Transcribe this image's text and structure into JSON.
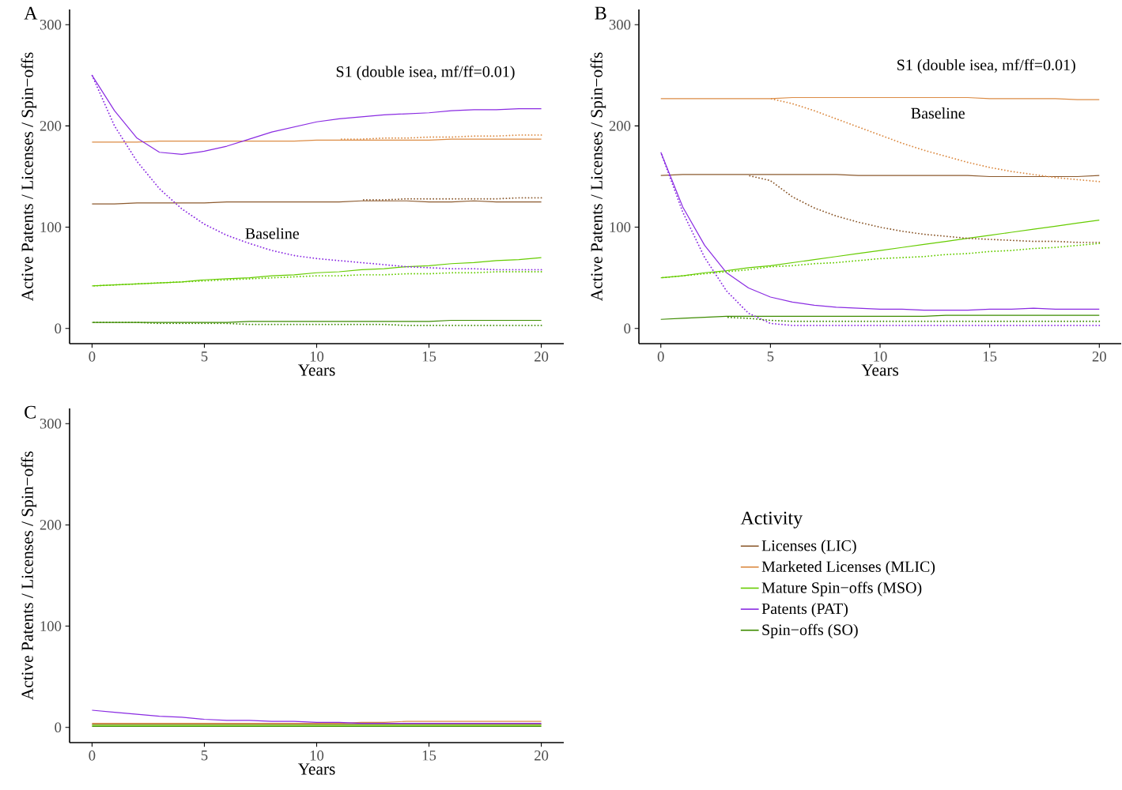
{
  "chart_data": [
    {
      "type": "line",
      "title": "A",
      "xlabel": "Years",
      "ylabel": "Active Patents / Licenses / Spin−offs",
      "xlim": [
        -1,
        21
      ],
      "ylim": [
        -15,
        315
      ],
      "xticks": [
        0,
        5,
        10,
        15,
        20
      ],
      "yticks": [
        0,
        100,
        200,
        300
      ],
      "x": [
        0,
        1,
        2,
        3,
        4,
        5,
        6,
        7,
        8,
        9,
        10,
        11,
        12,
        13,
        14,
        15,
        16,
        17,
        18,
        19,
        20
      ],
      "series": [
        {
          "color": "#8c5a2e",
          "line_style": "solid",
          "values": [
            123,
            123,
            124,
            124,
            124,
            124,
            125,
            125,
            125,
            125,
            125,
            125,
            126,
            126,
            126,
            125,
            125,
            126,
            125,
            125,
            125
          ]
        },
        {
          "color": "#dc8c45",
          "line_style": "solid",
          "values": [
            184,
            184,
            184,
            185,
            185,
            185,
            185,
            185,
            185,
            185,
            186,
            186,
            186,
            186,
            186,
            186,
            187,
            187,
            187,
            187,
            187
          ]
        },
        {
          "color": "#66cc00",
          "line_style": "solid",
          "values": [
            42,
            43,
            44,
            45,
            46,
            48,
            49,
            50,
            52,
            53,
            55,
            56,
            58,
            59,
            61,
            62,
            64,
            65,
            67,
            68,
            70
          ]
        },
        {
          "color": "#8a2be2",
          "line_style": "solid",
          "values": [
            250,
            215,
            188,
            174,
            172,
            175,
            180,
            187,
            194,
            199,
            204,
            207,
            209,
            211,
            212,
            213,
            215,
            216,
            216,
            217,
            217
          ]
        },
        {
          "color": "#3d8b00",
          "line_style": "solid",
          "values": [
            6,
            6,
            6,
            6,
            6,
            6,
            6,
            7,
            7,
            7,
            7,
            7,
            7,
            7,
            7,
            7,
            8,
            8,
            8,
            8,
            8
          ]
        },
        {
          "color": "#8c5a2e",
          "line_style": "dotted",
          "values": [
            null,
            null,
            null,
            null,
            null,
            null,
            null,
            null,
            null,
            null,
            null,
            null,
            127,
            127,
            128,
            128,
            128,
            128,
            128,
            129,
            129
          ]
        },
        {
          "color": "#dc8c45",
          "line_style": "dotted",
          "values": [
            null,
            null,
            null,
            null,
            null,
            null,
            null,
            null,
            null,
            null,
            null,
            187,
            187,
            188,
            188,
            189,
            189,
            190,
            190,
            191,
            191
          ]
        },
        {
          "color": "#66cc00",
          "line_style": "dotted",
          "values": [
            42,
            43,
            44,
            45,
            46,
            47,
            48,
            49,
            50,
            51,
            52,
            52,
            53,
            53,
            54,
            54,
            55,
            55,
            56,
            56,
            56
          ]
        },
        {
          "color": "#8a2be2",
          "line_style": "dotted",
          "values": [
            250,
            200,
            165,
            138,
            118,
            103,
            92,
            84,
            77,
            72,
            69,
            67,
            65,
            63,
            61,
            60,
            59,
            59,
            58,
            58,
            58
          ]
        },
        {
          "color": "#3d8b00",
          "line_style": "dotted",
          "values": [
            6,
            6,
            6,
            5,
            5,
            5,
            5,
            4,
            4,
            4,
            4,
            4,
            4,
            4,
            3,
            3,
            3,
            3,
            3,
            3,
            3
          ]
        }
      ],
      "annotations": [
        "S1 (double isea, mf/ff=0.01)",
        "Baseline"
      ]
    },
    {
      "type": "line",
      "title": "B",
      "xlabel": "Years",
      "ylabel": "Active Patents / Licenses / Spin−offs",
      "xlim": [
        -1,
        21
      ],
      "ylim": [
        -15,
        315
      ],
      "xticks": [
        0,
        5,
        10,
        15,
        20
      ],
      "yticks": [
        0,
        100,
        200,
        300
      ],
      "x": [
        0,
        1,
        2,
        3,
        4,
        5,
        6,
        7,
        8,
        9,
        10,
        11,
        12,
        13,
        14,
        15,
        16,
        17,
        18,
        19,
        20
      ],
      "series": [
        {
          "color": "#8c5a2e",
          "line_style": "solid",
          "values": [
            151,
            152,
            152,
            152,
            152,
            152,
            152,
            152,
            152,
            151,
            151,
            151,
            151,
            151,
            151,
            150,
            150,
            150,
            150,
            150,
            151
          ]
        },
        {
          "color": "#dc8c45",
          "line_style": "solid",
          "values": [
            227,
            227,
            227,
            227,
            227,
            227,
            228,
            228,
            228,
            228,
            228,
            228,
            228,
            228,
            228,
            227,
            227,
            227,
            227,
            226,
            226
          ]
        },
        {
          "color": "#66cc00",
          "line_style": "solid",
          "values": [
            50,
            52,
            55,
            57,
            60,
            62,
            65,
            68,
            71,
            74,
            77,
            80,
            83,
            86,
            89,
            92,
            95,
            98,
            101,
            104,
            107
          ]
        },
        {
          "color": "#8a2be2",
          "line_style": "solid",
          "values": [
            174,
            120,
            82,
            55,
            40,
            31,
            26,
            23,
            21,
            20,
            19,
            19,
            18,
            18,
            18,
            19,
            19,
            20,
            19,
            19,
            19
          ]
        },
        {
          "color": "#3d8b00",
          "line_style": "solid",
          "values": [
            9,
            10,
            11,
            12,
            12,
            12,
            12,
            12,
            12,
            12,
            12,
            12,
            12,
            13,
            13,
            13,
            13,
            13,
            13,
            13,
            13
          ]
        },
        {
          "color": "#8c5a2e",
          "line_style": "dotted",
          "values": [
            null,
            null,
            null,
            null,
            151,
            146,
            130,
            119,
            111,
            105,
            100,
            96,
            93,
            91,
            89,
            88,
            87,
            86,
            86,
            85,
            85
          ]
        },
        {
          "color": "#dc8c45",
          "line_style": "dotted",
          "values": [
            null,
            null,
            null,
            null,
            null,
            227,
            222,
            215,
            207,
            199,
            191,
            183,
            176,
            170,
            164,
            159,
            155,
            152,
            149,
            147,
            145
          ]
        },
        {
          "color": "#66cc00",
          "line_style": "dotted",
          "values": [
            50,
            52,
            54,
            56,
            58,
            61,
            62,
            64,
            65,
            67,
            69,
            70,
            71,
            73,
            74,
            76,
            77,
            79,
            80,
            82,
            84
          ]
        },
        {
          "color": "#8a2be2",
          "line_style": "dotted",
          "values": [
            174,
            115,
            70,
            37,
            15,
            5,
            3,
            3,
            3,
            3,
            3,
            3,
            3,
            3,
            3,
            3,
            3,
            3,
            3,
            3,
            3
          ]
        },
        {
          "color": "#3d8b00",
          "line_style": "dotted",
          "values": [
            null,
            null,
            null,
            11,
            10,
            8,
            7,
            7,
            7,
            7,
            7,
            7,
            7,
            7,
            7,
            7,
            7,
            7,
            7,
            7,
            7
          ]
        }
      ],
      "annotations": [
        "S1 (double isea, mf/ff=0.01)",
        "Baseline"
      ]
    },
    {
      "type": "line",
      "title": "C",
      "xlabel": "Years",
      "ylabel": "Active Patents / Licenses / Spin−offs",
      "xlim": [
        -1,
        21
      ],
      "ylim": [
        -15,
        315
      ],
      "xticks": [
        0,
        5,
        10,
        15,
        20
      ],
      "yticks": [
        0,
        100,
        200,
        300
      ],
      "legend": "right",
      "legend_title": "Activity",
      "x": [
        0,
        1,
        2,
        3,
        4,
        5,
        6,
        7,
        8,
        9,
        10,
        11,
        12,
        13,
        14,
        15,
        16,
        17,
        18,
        19,
        20
      ],
      "series": [
        {
          "name": "Licenses (LIC)",
          "color": "#8c5a2e",
          "line_style": "solid",
          "values": [
            3,
            3,
            3,
            3,
            3,
            3,
            3,
            3,
            3,
            3,
            3,
            3,
            3,
            3,
            3,
            3,
            3,
            3,
            3,
            3,
            3
          ]
        },
        {
          "name": "Marketed Licenses (MLIC)",
          "color": "#dc8c45",
          "line_style": "solid",
          "values": [
            4,
            4,
            4,
            4,
            4,
            4,
            4,
            4,
            4,
            4,
            4,
            4,
            5,
            5,
            6,
            6,
            6,
            6,
            6,
            6,
            6
          ]
        },
        {
          "name": "Mature Spin−offs (MSO)",
          "color": "#66cc00",
          "line_style": "solid",
          "values": [
            2,
            2,
            2,
            2,
            2,
            2,
            2,
            2,
            2,
            2,
            2,
            2,
            2,
            2,
            2,
            2,
            2,
            2,
            2,
            2,
            2
          ]
        },
        {
          "name": "Patents (PAT)",
          "color": "#8a2be2",
          "line_style": "solid",
          "values": [
            17,
            15,
            13,
            11,
            10,
            8,
            7,
            7,
            6,
            6,
            5,
            5,
            4,
            4,
            4,
            4,
            4,
            4,
            4,
            4,
            4
          ]
        },
        {
          "name": "Spin−offs (SO)",
          "color": "#3d8b00",
          "line_style": "solid",
          "values": [
            1,
            1,
            1,
            1,
            1,
            1,
            1,
            1,
            1,
            1,
            1,
            1,
            1,
            1,
            1,
            1,
            1,
            1,
            1,
            1,
            1
          ]
        }
      ]
    }
  ]
}
